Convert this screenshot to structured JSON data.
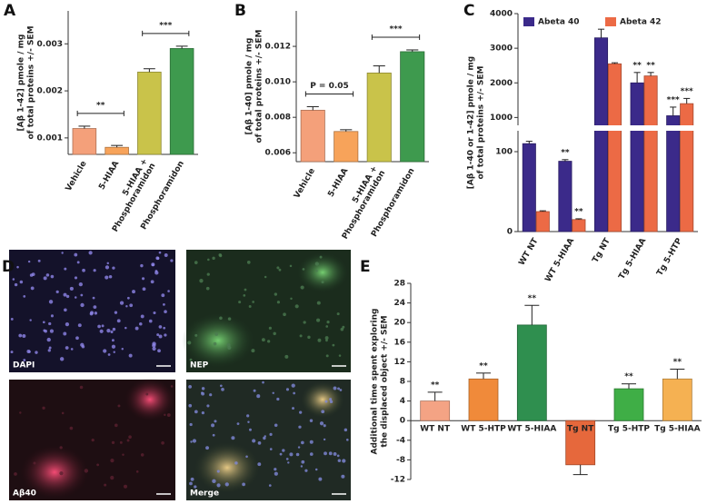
{
  "panel_labels": [
    "A",
    "B",
    "C",
    "D",
    "E"
  ],
  "images": [
    {
      "label": "DAPI"
    },
    {
      "label": "NEP"
    },
    {
      "label": "Aβ40"
    },
    {
      "label": "Merge"
    }
  ],
  "chart_data": [
    {
      "type": "bar",
      "ylabel": [
        "[Aβ 1-42] pmole / mg",
        "of total proteins +/- SEM"
      ],
      "categories": [
        "Vehicle",
        "5-HIAA",
        [
          "5-HIAA +",
          "Phosphoramidon"
        ],
        "Phosphoramidon"
      ],
      "values": [
        0.0012,
        0.0008,
        0.0024,
        0.0029
      ],
      "errors": [
        5e-05,
        4e-05,
        7e-05,
        5e-05
      ],
      "colors": [
        "#f4a07a",
        "#f7a35a",
        "#c9c34a",
        "#3e9a4e"
      ],
      "ylim": [
        0.00065,
        0.0037
      ],
      "yticks": [
        0.001,
        0.002,
        0.003
      ],
      "brackets": [
        {
          "from": 0,
          "to": 1,
          "label": "**"
        },
        {
          "from": 2,
          "to": 3,
          "label": "***"
        }
      ]
    },
    {
      "type": "bar",
      "ylabel": [
        "[Aβ 1-40] pmole / mg",
        "of total proteins +/- SEM"
      ],
      "categories": [
        "Vehicle",
        "5-HIAA",
        [
          "5-HIAA +",
          "Phosphoramidon"
        ],
        "Phosphoramidon"
      ],
      "values": [
        0.0084,
        0.0072,
        0.0105,
        0.0117
      ],
      "errors": [
        0.0002,
        0.0001,
        0.0004,
        0.0001
      ],
      "colors": [
        "#f4a07a",
        "#f7a35a",
        "#c9c34a",
        "#3e9a4e"
      ],
      "ylim": [
        0.0055,
        0.014
      ],
      "yticks": [
        0.006,
        0.008,
        {
          "value": 0.01,
          "label": "0.010"
        },
        0.012
      ],
      "brackets": [
        {
          "from": 0,
          "to": 1,
          "label": "P = 0.05"
        },
        {
          "from": 2,
          "to": 3,
          "label": "***"
        }
      ]
    },
    {
      "type": "grouped_bar",
      "ylabel": [
        "[Aβ 1-40 or 1-42] pmole / mg",
        "of total proteins +/- SEM"
      ],
      "categories": [
        "WT NT",
        "WT 5-HIAA",
        "Tg NT",
        "Tg 5-HIAA",
        "Tg 5-HTP"
      ],
      "series": [
        {
          "name": "Abeta 40",
          "color": "#3b2a8a",
          "values": [
            110,
            88,
            3300,
            2000,
            1050
          ],
          "errors": [
            3,
            2,
            250,
            300,
            250
          ],
          "sig": [
            null,
            "**",
            null,
            "**",
            "***"
          ]
        },
        {
          "name": "Abeta 42",
          "color": "#ec6a45",
          "values": [
            25,
            15,
            2550,
            2200,
            1400
          ],
          "errors": [
            1,
            1,
            30,
            100,
            150
          ],
          "sig": [
            null,
            "**",
            null,
            "**",
            "***"
          ]
        }
      ],
      "ylim": [
        0,
        4000
      ],
      "ybreak": [
        125,
        800
      ],
      "yticks": [
        0,
        100,
        1000,
        2000,
        3000,
        4000
      ],
      "legend": "top-left"
    },
    {
      "type": "bar",
      "ylabel": [
        "Additional time spent exploring",
        "the displaced object +/- SEM"
      ],
      "categories": [
        "WT NT",
        "WT 5-HTP",
        "WT 5-HIAA",
        "Tg NT",
        "Tg 5-HTP",
        "Tg 5-HIAA"
      ],
      "values": [
        4,
        8.5,
        19.5,
        -9,
        6.5,
        8.5
      ],
      "errors": [
        1.8,
        1.2,
        4,
        2,
        1,
        2
      ],
      "sig": [
        "**",
        "**",
        "**",
        null,
        "**",
        "**"
      ],
      "colors": [
        "#f4a384",
        "#f08a3a",
        "#2f8f4f",
        "#e6683c",
        "#3fae46",
        "#f5b152"
      ],
      "ylim": [
        -12,
        28
      ],
      "yticks": [
        -12,
        -8,
        -4,
        0,
        4,
        8,
        12,
        16,
        20,
        24,
        28
      ]
    }
  ]
}
